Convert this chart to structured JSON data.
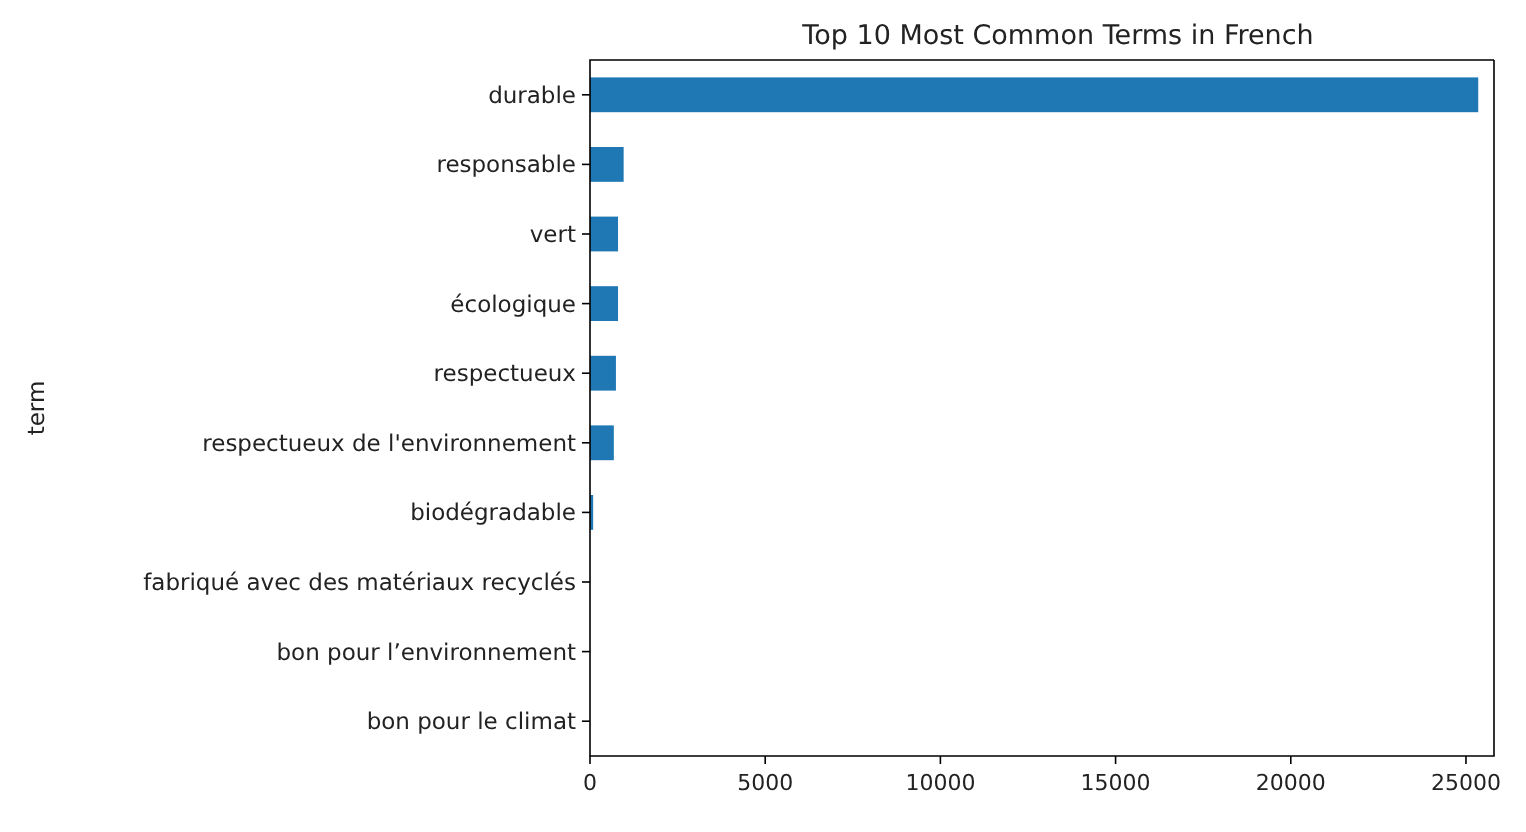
{
  "chart_data": {
    "type": "bar",
    "orientation": "horizontal",
    "title": "Top 10 Most Common Terms in French",
    "ylabel": "term",
    "categories": [
      "durable",
      "responsable",
      "vert",
      "écologique",
      "respectueux",
      "respectueux de l'environnement",
      "biodégradable",
      "fabriqué avec des matériaux recyclés",
      "bon pour l’environnement",
      "bon pour le climat"
    ],
    "values": [
      25350,
      960,
      800,
      800,
      740,
      680,
      90,
      0,
      0,
      0
    ],
    "color": "#1f77b4",
    "xlim": [
      0,
      25800
    ],
    "xticks": [
      0,
      5000,
      10000,
      15000,
      20000,
      25000
    ],
    "grid": false
  }
}
